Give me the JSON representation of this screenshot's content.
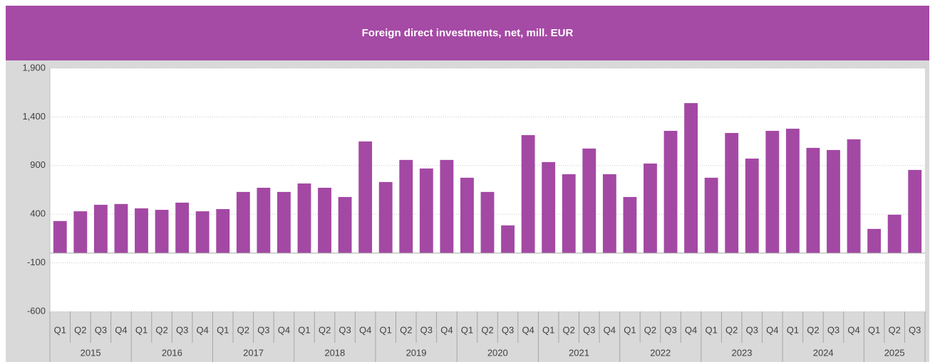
{
  "chart_data": {
    "type": "bar",
    "title": "Foreign direct investments, net, mill. EUR",
    "categories": [
      "Q1",
      "Q2",
      "Q3",
      "Q4",
      "Q1",
      "Q2",
      "Q3",
      "Q4",
      "Q1",
      "Q2",
      "Q3",
      "Q4",
      "Q1",
      "Q2",
      "Q3",
      "Q4",
      "Q1",
      "Q2",
      "Q3",
      "Q4",
      "Q1",
      "Q2",
      "Q3",
      "Q4",
      "Q1",
      "Q2",
      "Q3",
      "Q4",
      "Q1",
      "Q2",
      "Q3",
      "Q4",
      "Q1",
      "Q2",
      "Q3",
      "Q4",
      "Q1",
      "Q2",
      "Q3",
      "Q4",
      "Q1",
      "Q2",
      "Q3"
    ],
    "years": [
      "2015",
      "2016",
      "2017",
      "2018",
      "2019",
      "2020",
      "2021",
      "2022",
      "2023",
      "2024",
      "2025"
    ],
    "values": [
      330,
      430,
      497,
      505,
      460,
      445,
      519,
      430,
      453,
      629,
      672,
      629,
      716,
      672,
      577,
      1148,
      731,
      958,
      870,
      958,
      775,
      629,
      285,
      1213,
      936,
      811,
      1075,
      811,
      577,
      921,
      1257,
      1542,
      775,
      1235,
      972,
      1257,
      1279,
      1082,
      1060,
      1170,
      249,
      395,
      855
    ],
    "color": "#a349a4",
    "ylim": [
      -600,
      1900
    ],
    "yticks": [
      -600,
      -100,
      400,
      900,
      {
        "value": 1400,
        "label": "1,400"
      },
      {
        "value": 1900,
        "label": "1,900"
      }
    ],
    "grid": true
  }
}
